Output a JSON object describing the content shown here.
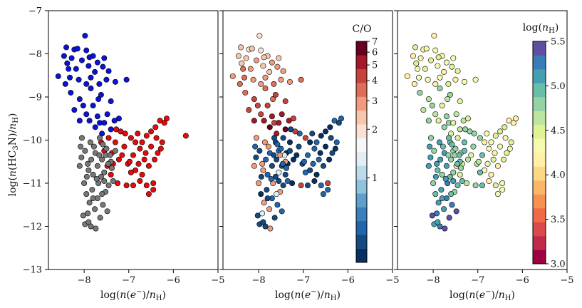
{
  "figure": {
    "ylabel": "log(n(HC3N)/nH)",
    "xlabel": "log(n(e−)/nH)"
  },
  "chart_data": [
    {
      "type": "scatter",
      "panel": "left",
      "title": "",
      "xlabel": "log(n(e−)/nH)",
      "ylabel": "log(n(HC3N)/nH)",
      "xlim": [
        -8.8,
        -5.0
      ],
      "ylim": [
        -13,
        -7
      ],
      "xticks": [
        -8,
        -7,
        -6,
        -5
      ],
      "yticks": [
        -13,
        -12,
        -11,
        -10,
        -9,
        -8,
        -7
      ],
      "colors": {
        "blue": "#0a14d6",
        "red": "#e30b0b",
        "grey": "#777777"
      },
      "series": [
        {
          "name": "blue group",
          "color": "blue",
          "points": [
            [
              -8.58,
              -8.52
            ],
            [
              -8.45,
              -8.05
            ],
            [
              -8.4,
              -7.85
            ],
            [
              -8.38,
              -8.22
            ],
            [
              -8.32,
              -8.55
            ],
            [
              -8.28,
              -8.1
            ],
            [
              -8.22,
              -7.9
            ],
            [
              -8.18,
              -8.35
            ],
            [
              -8.12,
              -8.6
            ],
            [
              -8.05,
              -8.15
            ],
            [
              -7.98,
              -7.58
            ],
            [
              -7.95,
              -7.92
            ],
            [
              -7.9,
              -8.28
            ],
            [
              -7.85,
              -8.55
            ],
            [
              -7.8,
              -8.05
            ],
            [
              -7.76,
              -8.42
            ],
            [
              -7.7,
              -8.2
            ],
            [
              -7.66,
              -8.7
            ],
            [
              -7.62,
              -8.95
            ],
            [
              -7.58,
              -8.3
            ],
            [
              -7.55,
              -8.1
            ],
            [
              -7.5,
              -8.6
            ],
            [
              -7.45,
              -8.4
            ],
            [
              -7.4,
              -9.1
            ],
            [
              -7.3,
              -8.65
            ],
            [
              -7.05,
              -8.6
            ],
            [
              -8.3,
              -8.9
            ],
            [
              -8.22,
              -9.3
            ],
            [
              -8.1,
              -9.05
            ],
            [
              -8.02,
              -9.2
            ],
            [
              -7.95,
              -9.4
            ],
            [
              -7.88,
              -9.55
            ],
            [
              -7.8,
              -9.2
            ],
            [
              -7.75,
              -9.7
            ],
            [
              -7.7,
              -9.45
            ],
            [
              -7.65,
              -9.6
            ],
            [
              -7.6,
              -9.85
            ],
            [
              -7.55,
              -9.6
            ],
            [
              -7.48,
              -9.4
            ],
            [
              -7.4,
              -9.75
            ],
            [
              -7.32,
              -9.55
            ],
            [
              -7.22,
              -9.5
            ],
            [
              -8.15,
              -7.88
            ],
            [
              -8.35,
              -8.35
            ],
            [
              -7.85,
              -8.8
            ],
            [
              -8.1,
              -9.55
            ],
            [
              -7.95,
              -8.7
            ],
            [
              -7.68,
              -9.05
            ],
            [
              -8.42,
              -8.7
            ],
            [
              -7.88,
              -8.08
            ]
          ]
        },
        {
          "name": "red group",
          "color": "red",
          "points": [
            [
              -7.62,
              -10.05
            ],
            [
              -7.55,
              -10.25
            ],
            [
              -7.45,
              -9.95
            ],
            [
              -7.38,
              -10.3
            ],
            [
              -7.3,
              -10.05
            ],
            [
              -7.22,
              -10.45
            ],
            [
              -7.18,
              -9.8
            ],
            [
              -7.1,
              -10.15
            ],
            [
              -7.02,
              -10.55
            ],
            [
              -6.95,
              -9.95
            ],
            [
              -6.9,
              -10.35
            ],
            [
              -6.85,
              -10.7
            ],
            [
              -6.8,
              -9.85
            ],
            [
              -6.75,
              -10.2
            ],
            [
              -6.7,
              -10.8
            ],
            [
              -6.65,
              -10.45
            ],
            [
              -6.6,
              -9.9
            ],
            [
              -6.55,
              -10.6
            ],
            [
              -6.5,
              -10.15
            ],
            [
              -6.45,
              -11.0
            ],
            [
              -6.4,
              -9.7
            ],
            [
              -6.35,
              -10.3
            ],
            [
              -6.3,
              -9.55
            ],
            [
              -6.25,
              -10.05
            ],
            [
              -6.2,
              -9.6
            ],
            [
              -6.15,
              -9.5
            ],
            [
              -5.72,
              -9.9
            ],
            [
              -7.25,
              -11.0
            ],
            [
              -7.05,
              -11.05
            ],
            [
              -6.9,
              -11.05
            ],
            [
              -6.75,
              -10.95
            ],
            [
              -6.55,
              -11.25
            ],
            [
              -6.45,
              -11.15
            ],
            [
              -6.6,
              -11.05
            ],
            [
              -7.35,
              -10.55
            ],
            [
              -6.95,
              -10.75
            ],
            [
              -7.15,
              -10.35
            ],
            [
              -6.7,
              -10.05
            ],
            [
              -6.5,
              -9.8
            ],
            [
              -6.38,
              -9.95
            ],
            [
              -7.48,
              -10.6
            ],
            [
              -6.85,
              -10.05
            ],
            [
              -7.08,
              -9.85
            ],
            [
              -6.42,
              -10.45
            ],
            [
              -6.62,
              -10.3
            ],
            [
              -7.28,
              -9.75
            ],
            [
              -6.28,
              -10.2
            ],
            [
              -6.98,
              -10.5
            ],
            [
              -7.4,
              -10.8
            ],
            [
              -6.78,
              -10.55
            ]
          ]
        },
        {
          "name": "grey group",
          "color": "grey",
          "points": [
            [
              -8.05,
              -9.95
            ],
            [
              -7.98,
              -10.25
            ],
            [
              -7.92,
              -10.55
            ],
            [
              -7.86,
              -10.05
            ],
            [
              -7.8,
              -10.8
            ],
            [
              -7.75,
              -10.3
            ],
            [
              -7.7,
              -10.6
            ],
            [
              -7.65,
              -9.95
            ],
            [
              -7.6,
              -10.45
            ],
            [
              -7.55,
              -10.75
            ],
            [
              -7.5,
              -10.2
            ],
            [
              -7.45,
              -11.05
            ],
            [
              -7.4,
              -10.5
            ],
            [
              -7.35,
              -10.95
            ],
            [
              -7.3,
              -10.25
            ],
            [
              -8.1,
              -10.6
            ],
            [
              -8.0,
              -11.0
            ],
            [
              -7.95,
              -11.25
            ],
            [
              -7.88,
              -11.45
            ],
            [
              -7.82,
              -11.15
            ],
            [
              -7.76,
              -11.6
            ],
            [
              -7.7,
              -11.35
            ],
            [
              -7.64,
              -11.8
            ],
            [
              -7.58,
              -11.5
            ],
            [
              -7.52,
              -11.2
            ],
            [
              -7.48,
              -11.65
            ],
            [
              -8.02,
              -11.75
            ],
            [
              -7.98,
              -11.95
            ],
            [
              -7.92,
              -11.7
            ],
            [
              -7.85,
              -12.0
            ],
            [
              -8.06,
              -10.4
            ],
            [
              -7.78,
              -10.15
            ],
            [
              -7.62,
              -10.85
            ],
            [
              -7.42,
              -10.35
            ],
            [
              -7.9,
              -10.7
            ],
            [
              -7.68,
              -11.0
            ],
            [
              -7.55,
              -10.95
            ],
            [
              -7.38,
              -10.65
            ],
            [
              -7.84,
              -10.45
            ],
            [
              -7.72,
              -10.9
            ],
            [
              -7.66,
              -10.35
            ],
            [
              -7.58,
              -10.1
            ],
            [
              -7.94,
              -10.85
            ],
            [
              -8.08,
              -10.15
            ],
            [
              -7.46,
              -10.55
            ],
            [
              -7.52,
              -10.35
            ],
            [
              -7.8,
              -11.35
            ],
            [
              -7.6,
              -11.25
            ],
            [
              -7.74,
              -12.05
            ],
            [
              -7.9,
              -11.9
            ]
          ]
        }
      ]
    },
    {
      "type": "scatter",
      "panel": "middle",
      "xlabel": "log(n(e−)/nH)",
      "xlim": [
        -8.8,
        -5.0
      ],
      "ylim": [
        -13,
        -7
      ],
      "xticks": [
        -8,
        -7,
        -6,
        -5
      ],
      "colorbar": {
        "label": "C/O",
        "scale": "log",
        "range": [
          0.3,
          7
        ],
        "ticks": [
          1,
          2,
          3,
          4,
          5,
          6,
          7
        ],
        "colormap": "RdBu_r-discrete"
      }
    },
    {
      "type": "scatter",
      "panel": "right",
      "xlabel": "log(n(e−)/nH)",
      "xlim": [
        -8.8,
        -5.0
      ],
      "ylim": [
        -13,
        -7
      ],
      "xticks": [
        -8,
        -7,
        -6,
        -5
      ],
      "colorbar": {
        "label": "log(nH)",
        "range": [
          3.0,
          5.5
        ],
        "ticks": [
          3.0,
          3.5,
          4.0,
          4.5,
          5.0,
          5.5
        ],
        "colormap": "Spectral-discrete"
      }
    }
  ],
  "colorbars": {
    "co": {
      "title": "C/O",
      "tick_labels": [
        "1",
        "2",
        "3",
        "4",
        "5",
        "6",
        "7"
      ]
    },
    "nh": {
      "title": "log(nH)",
      "tick_labels": [
        "3.0",
        "3.5",
        "4.0",
        "4.5",
        "5.0",
        "5.5"
      ]
    }
  }
}
